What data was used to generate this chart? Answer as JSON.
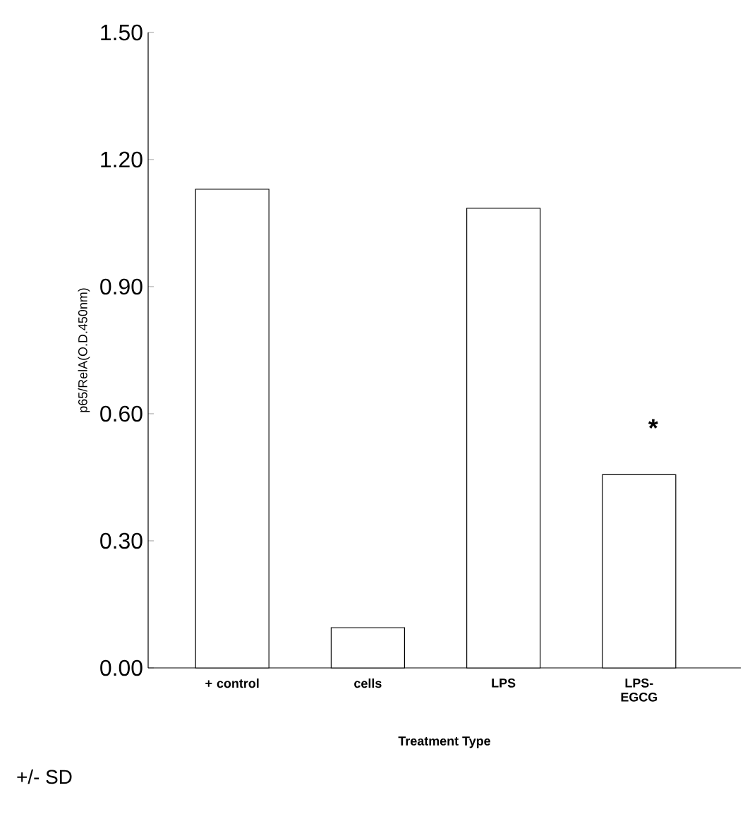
{
  "chart_data": {
    "type": "bar",
    "ylabel": "p65/RelA(O.D.450nm)",
    "xlabel": "Treatment Type",
    "categories": [
      "+ control",
      "cells",
      "LPS",
      "LPS-EGCG"
    ],
    "values": [
      1.13,
      0.095,
      1.085,
      0.456
    ],
    "color": "#ffffff",
    "ylim": [
      0,
      1.5
    ],
    "yticks": [
      {
        "value": 0,
        "label": "0.00"
      },
      {
        "value": 0.3,
        "label": "0.30"
      },
      {
        "value": 0.6,
        "label": "0.60"
      },
      {
        "value": 0.9,
        "label": "0.90"
      },
      {
        "value": 1.2,
        "label": "1.20"
      },
      {
        "value": 1.5,
        "label": "1.50"
      }
    ],
    "grid": false,
    "annotations": [
      "*",
      "+/- SD"
    ]
  }
}
